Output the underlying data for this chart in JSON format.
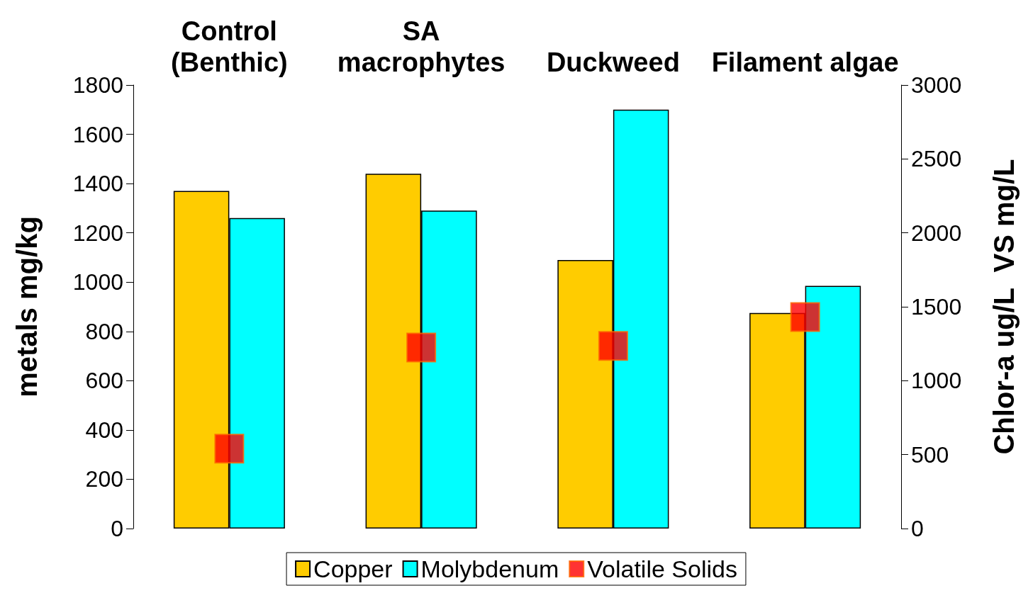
{
  "chart_data": {
    "type": "bar",
    "categories": [
      "Control\n(Benthic)",
      "SA\nmacrophytes",
      "Duckweed",
      "Filament algae"
    ],
    "ylabel": "metals mg/kg",
    "y2label": "Chlor-a ug/L  VS mg/L",
    "ylim": [
      0,
      1800
    ],
    "yticks": [
      0,
      200,
      400,
      600,
      800,
      1000,
      1200,
      1400,
      1600,
      1800
    ],
    "y2lim": [
      0,
      3000
    ],
    "y2ticks": [
      0,
      500,
      1000,
      1500,
      2000,
      2500,
      3000
    ],
    "series": [
      {
        "name": "Copper",
        "color": "#ffcc00",
        "values": [
          1370,
          1440,
          1090,
          875
        ]
      },
      {
        "name": "Molybdenum",
        "color": "#00ffff",
        "values": [
          1260,
          1290,
          1700,
          985
        ]
      },
      {
        "name": "Volatile Solids",
        "type": "scatter",
        "axis": "y2",
        "color": "#ff0000",
        "values": [
          540,
          1225,
          1235,
          1430
        ]
      }
    ],
    "marker": "square",
    "legend": "bottom",
    "grid": false
  }
}
